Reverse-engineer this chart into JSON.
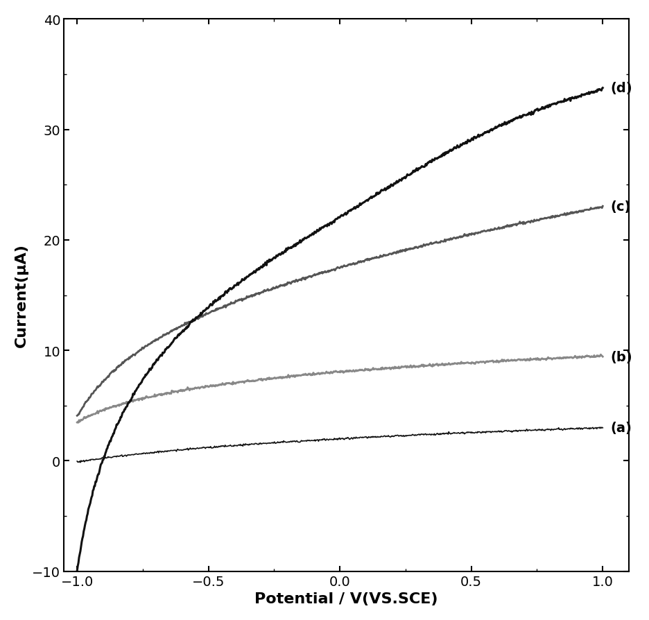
{
  "title": "",
  "xlabel": "Potential / V(VS.SCE)",
  "ylabel": "Current(μA)",
  "xlim": [
    -1.05,
    1.1
  ],
  "ylim": [
    -10,
    40
  ],
  "xticks": [
    -1.0,
    -0.5,
    0.0,
    0.5,
    1.0
  ],
  "yticks": [
    -10,
    0,
    10,
    20,
    30,
    40
  ],
  "xlabel_fontsize": 16,
  "ylabel_fontsize": 16,
  "tick_fontsize": 14,
  "label_fontsize": 14,
  "background_color": "#ffffff",
  "curves": {
    "a": {
      "color": "#111111",
      "linewidth": 1.2,
      "label": "(a)"
    },
    "b": {
      "color": "#888888",
      "linewidth": 2.0,
      "label": "(b)"
    },
    "c": {
      "color": "#555555",
      "linewidth": 2.0,
      "label": "(c)"
    },
    "d": {
      "color": "#111111",
      "linewidth": 2.2,
      "label": "(d)"
    }
  }
}
